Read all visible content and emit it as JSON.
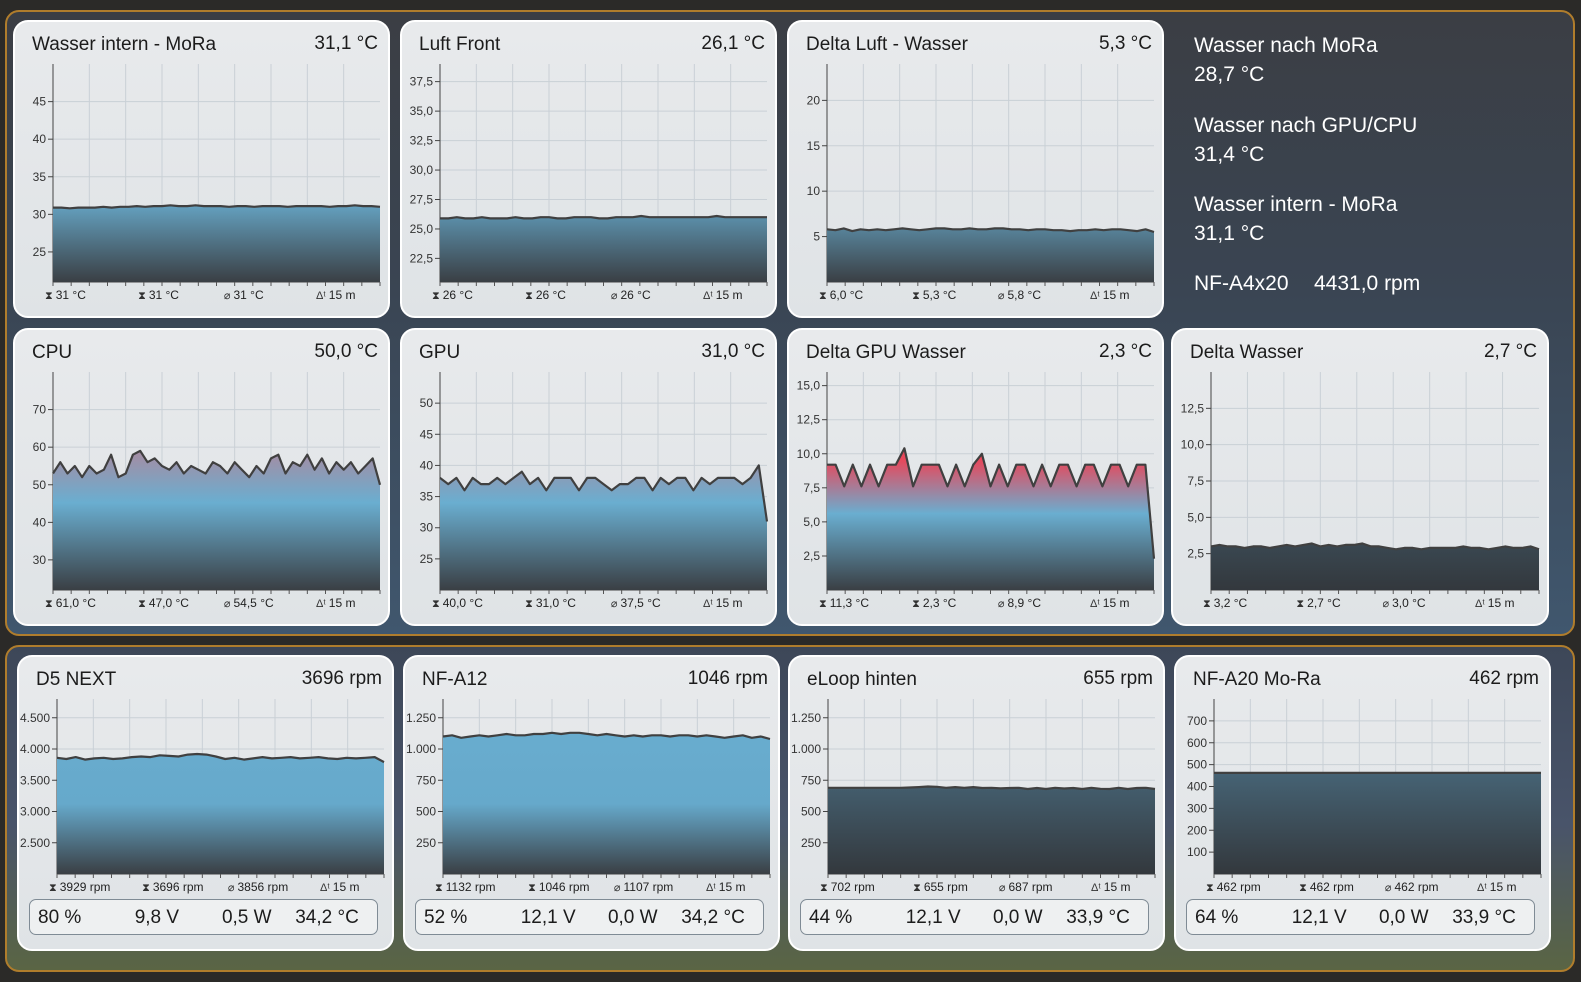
{
  "info_panel": {
    "items": [
      {
        "label": "Wasser nach MoRa",
        "value": "28,7 °C"
      },
      {
        "label": "Wasser nach GPU/CPU",
        "value": "31,4 °C"
      },
      {
        "label": "Wasser intern - MoRa",
        "value": "31,1 °C"
      }
    ],
    "fan_label": "NF-A4x20",
    "fan_value": "4431,0 rpm"
  },
  "panels": [
    {
      "id": "p0",
      "title": "Wasser intern - MoRa",
      "value": "31,1 °C",
      "stats": {
        "max": "31 °C",
        "min": "31 °C",
        "avg": "31 °C",
        "span": "15 m"
      },
      "chart_data": {
        "type": "area",
        "ymin": 21,
        "ymax": 50,
        "ticks": [
          {
            "v": 25,
            "l": "25"
          },
          {
            "v": 30,
            "l": "30"
          },
          {
            "v": 35,
            "l": "35"
          },
          {
            "v": 40,
            "l": "40"
          },
          {
            "v": 45,
            "l": "45"
          }
        ],
        "values": [
          30.9,
          30.9,
          30.8,
          30.9,
          30.9,
          30.9,
          31.0,
          30.9,
          31.0,
          31.0,
          31.1,
          31.0,
          31.1,
          31.1,
          31.2,
          31.1,
          31.1,
          31.2,
          31.1,
          31.1,
          31.1,
          31.0,
          31.1,
          31.1,
          31.0,
          31.1,
          31.1,
          31.1,
          31.0,
          31.1,
          31.1,
          31.1,
          31.1,
          31.0,
          31.1,
          31.1,
          31.2,
          31.1,
          31.1,
          31.0
        ],
        "fill": "temp"
      }
    },
    {
      "id": "p1",
      "title": "Luft Front",
      "value": "26,1 °C",
      "stats": {
        "max": "26 °C",
        "min": "26 °C",
        "avg": "26 °C",
        "span": "15 m"
      },
      "chart_data": {
        "type": "area",
        "ymin": 20.5,
        "ymax": 39,
        "ticks": [
          {
            "v": 22.5,
            "l": "22,5"
          },
          {
            "v": 25,
            "l": "25,0"
          },
          {
            "v": 27.5,
            "l": "27,5"
          },
          {
            "v": 30,
            "l": "30,0"
          },
          {
            "v": 32.5,
            "l": "32,5"
          },
          {
            "v": 35,
            "l": "35,0"
          },
          {
            "v": 37.5,
            "l": "37,5"
          }
        ],
        "values": [
          25.9,
          25.9,
          26.0,
          25.9,
          25.9,
          26.0,
          25.9,
          25.9,
          25.9,
          26.0,
          25.9,
          25.9,
          26.0,
          26.0,
          25.9,
          25.9,
          26.0,
          26.0,
          26.0,
          25.9,
          25.9,
          26.0,
          26.0,
          26.0,
          26.1,
          26.0,
          26.0,
          26.0,
          26.0,
          26.0,
          26.0,
          26.0,
          26.0,
          26.1,
          26.0,
          26.0,
          26.0,
          26.0,
          26.0,
          26.0
        ],
        "fill": "blue"
      }
    },
    {
      "id": "p2",
      "title": "Delta Luft - Wasser",
      "value": "5,3 °C",
      "stats": {
        "max": "6,0 °C",
        "min": "5,3 °C",
        "avg": "5,8 °C",
        "span": "15 m"
      },
      "chart_data": {
        "type": "area",
        "ymin": 0,
        "ymax": 24,
        "ticks": [
          {
            "v": 5,
            "l": "5"
          },
          {
            "v": 10,
            "l": "10"
          },
          {
            "v": 15,
            "l": "15"
          },
          {
            "v": 20,
            "l": "20"
          }
        ],
        "values": [
          5.8,
          5.7,
          5.9,
          5.6,
          5.8,
          5.7,
          5.8,
          5.7,
          5.8,
          5.9,
          5.8,
          5.7,
          5.8,
          5.9,
          5.9,
          5.8,
          5.8,
          5.9,
          5.8,
          5.8,
          5.9,
          5.9,
          5.8,
          5.8,
          5.7,
          5.8,
          5.8,
          5.7,
          5.7,
          5.6,
          5.7,
          5.7,
          5.8,
          5.7,
          5.8,
          5.8,
          5.7,
          5.6,
          5.8,
          5.5
        ],
        "fill": "temp"
      }
    },
    {
      "id": "p3",
      "title": "CPU",
      "value": "50,0 °C",
      "stats": {
        "max": "61,0 °C",
        "min": "47,0 °C",
        "avg": "54,5 °C",
        "span": "15 m"
      },
      "chart_data": {
        "type": "area",
        "ymin": 22,
        "ymax": 80,
        "ticks": [
          {
            "v": 30,
            "l": "30"
          },
          {
            "v": 40,
            "l": "40"
          },
          {
            "v": 50,
            "l": "50"
          },
          {
            "v": 60,
            "l": "60"
          },
          {
            "v": 70,
            "l": "70"
          }
        ],
        "values": [
          53,
          56,
          53,
          55,
          52,
          55,
          53,
          54,
          58,
          52,
          53,
          58,
          59,
          56,
          57,
          55,
          54,
          56,
          53,
          55,
          54,
          53,
          56,
          55,
          53,
          56,
          54,
          52,
          55,
          53,
          57,
          58,
          53,
          56,
          55,
          58,
          54,
          57,
          53,
          56,
          54,
          56,
          53,
          55,
          57,
          50
        ],
        "fill": "temp"
      }
    },
    {
      "id": "p4",
      "title": "GPU",
      "value": "31,0 °C",
      "stats": {
        "max": "40,0 °C",
        "min": "31,0 °C",
        "avg": "37,5 °C",
        "span": "15 m"
      },
      "chart_data": {
        "type": "area",
        "ymin": 20,
        "ymax": 55,
        "ticks": [
          {
            "v": 25,
            "l": "25"
          },
          {
            "v": 30,
            "l": "30"
          },
          {
            "v": 35,
            "l": "35"
          },
          {
            "v": 40,
            "l": "40"
          },
          {
            "v": 45,
            "l": "45"
          },
          {
            "v": 50,
            "l": "50"
          }
        ],
        "values": [
          38,
          37,
          38,
          36,
          38,
          37,
          37,
          38,
          37,
          38,
          39,
          37,
          38,
          36,
          38,
          38,
          38,
          36,
          38,
          38,
          37,
          36,
          37,
          37,
          38,
          38,
          36,
          38,
          37,
          38,
          38,
          36,
          38,
          37,
          38,
          38,
          38,
          37,
          38,
          40,
          31
        ],
        "fill": "temp"
      }
    },
    {
      "id": "p5",
      "title": "Delta GPU Wasser",
      "value": "2,3 °C",
      "stats": {
        "max": "11,3 °C",
        "min": "2,3 °C",
        "avg": "8,9 °C",
        "span": "15 m"
      },
      "chart_data": {
        "type": "area",
        "ymin": 0,
        "ymax": 16,
        "ticks": [
          {
            "v": 2.5,
            "l": "2,5"
          },
          {
            "v": 5,
            "l": "5,0"
          },
          {
            "v": 7.5,
            "l": "7,5"
          },
          {
            "v": 10,
            "l": "10,0"
          },
          {
            "v": 12.5,
            "l": "12,5"
          },
          {
            "v": 15,
            "l": "15,0"
          }
        ],
        "values": [
          9.2,
          9.2,
          7.6,
          9.2,
          7.6,
          9.2,
          7.6,
          9.2,
          9.2,
          10.4,
          7.6,
          9.2,
          9.2,
          9.2,
          7.6,
          9.2,
          7.6,
          9.2,
          10.0,
          7.6,
          9.2,
          7.6,
          9.2,
          9.2,
          7.6,
          9.2,
          7.6,
          9.2,
          9.2,
          7.6,
          9.2,
          9.2,
          7.6,
          9.2,
          9.2,
          7.6,
          9.2,
          9.2,
          2.3
        ],
        "fill": "hot"
      }
    },
    {
      "id": "p6",
      "title": "Delta Wasser",
      "value": "2,7 °C",
      "stats": {
        "max": "3,2 °C",
        "min": "2,7 °C",
        "avg": "3,0 °C",
        "span": "15 m"
      },
      "chart_data": {
        "type": "area",
        "ymin": 0,
        "ymax": 15,
        "ticks": [
          {
            "v": 2.5,
            "l": "2,5"
          },
          {
            "v": 5,
            "l": "5,0"
          },
          {
            "v": 7.5,
            "l": "7,5"
          },
          {
            "v": 10,
            "l": "10,0"
          },
          {
            "v": 12.5,
            "l": "12,5"
          }
        ],
        "values": [
          3.0,
          3.1,
          3.0,
          3.0,
          2.9,
          3.0,
          3.0,
          2.9,
          3.0,
          3.1,
          3.0,
          3.1,
          3.2,
          3.0,
          3.1,
          3.0,
          3.1,
          3.1,
          3.2,
          3.0,
          3.0,
          2.9,
          2.8,
          2.9,
          2.9,
          2.8,
          2.9,
          2.9,
          2.9,
          2.9,
          3.0,
          2.9,
          2.9,
          2.8,
          2.9,
          3.0,
          2.9,
          2.9,
          3.0,
          2.8
        ],
        "fill": "dark"
      }
    },
    {
      "id": "p7",
      "title": "D5 NEXT",
      "value": "3696 rpm",
      "stats": {
        "max": "3929 rpm",
        "min": "3696 rpm",
        "avg": "3856 rpm",
        "span": "15 m"
      },
      "chart_data": {
        "type": "area",
        "ymin": 2000,
        "ymax": 4800,
        "ticks": [
          {
            "v": 2500,
            "l": "2.500"
          },
          {
            "v": 3000,
            "l": "3.000"
          },
          {
            "v": 3500,
            "l": "3.500"
          },
          {
            "v": 4000,
            "l": "4.000"
          },
          {
            "v": 4500,
            "l": "4.500"
          }
        ],
        "values": [
          3860,
          3840,
          3870,
          3830,
          3850,
          3860,
          3840,
          3850,
          3870,
          3880,
          3870,
          3900,
          3890,
          3880,
          3910,
          3920,
          3910,
          3880,
          3840,
          3860,
          3830,
          3850,
          3870,
          3850,
          3860,
          3870,
          3850,
          3860,
          3870,
          3850,
          3840,
          3860,
          3850,
          3860,
          3870,
          3790
        ],
        "fill": "blue"
      }
    },
    {
      "id": "p8",
      "title": "NF-A12",
      "value": "1046 rpm",
      "stats": {
        "max": "1132 rpm",
        "min": "1046 rpm",
        "avg": "1107 rpm",
        "span": "15 m"
      },
      "chart_data": {
        "type": "area",
        "ymin": 0,
        "ymax": 1400,
        "ticks": [
          {
            "v": 250,
            "l": "250"
          },
          {
            "v": 500,
            "l": "500"
          },
          {
            "v": 750,
            "l": "750"
          },
          {
            "v": 1000,
            "l": "1.000"
          },
          {
            "v": 1250,
            "l": "1.250"
          }
        ],
        "values": [
          1100,
          1110,
          1090,
          1100,
          1110,
          1100,
          1110,
          1120,
          1110,
          1110,
          1120,
          1120,
          1130,
          1120,
          1130,
          1130,
          1120,
          1110,
          1120,
          1110,
          1100,
          1110,
          1100,
          1110,
          1110,
          1100,
          1110,
          1110,
          1100,
          1110,
          1100,
          1090,
          1100,
          1110,
          1090,
          1100,
          1080
        ],
        "fill": "blue"
      }
    },
    {
      "id": "p9",
      "title": "eLoop hinten",
      "value": "655 rpm",
      "stats": {
        "max": "702 rpm",
        "min": "655 rpm",
        "avg": "687 rpm",
        "span": "15 m"
      },
      "chart_data": {
        "type": "area",
        "ymin": 0,
        "ymax": 1400,
        "ticks": [
          {
            "v": 250,
            "l": "250"
          },
          {
            "v": 500,
            "l": "500"
          },
          {
            "v": 750,
            "l": "750"
          },
          {
            "v": 1000,
            "l": "1.000"
          },
          {
            "v": 1250,
            "l": "1.250"
          }
        ],
        "values": [
          690,
          690,
          690,
          690,
          690,
          690,
          690,
          690,
          690,
          692,
          695,
          700,
          698,
          690,
          695,
          690,
          695,
          688,
          690,
          685,
          688,
          690,
          680,
          688,
          680,
          690,
          684,
          688,
          680,
          690,
          682,
          680,
          690,
          680,
          688,
          690,
          680
        ],
        "fill": "dark"
      }
    },
    {
      "id": "p10",
      "title": "NF-A20 Mo-Ra",
      "value": "462 rpm",
      "stats": {
        "max": "462 rpm",
        "min": "462 rpm",
        "avg": "462 rpm",
        "span": "15 m"
      },
      "chart_data": {
        "type": "area",
        "ymin": 0,
        "ymax": 800,
        "ticks": [
          {
            "v": 100,
            "l": "100"
          },
          {
            "v": 200,
            "l": "200"
          },
          {
            "v": 300,
            "l": "300"
          },
          {
            "v": 400,
            "l": "400"
          },
          {
            "v": 500,
            "l": "500"
          },
          {
            "v": 600,
            "l": "600"
          },
          {
            "v": 700,
            "l": "700"
          }
        ],
        "values": [
          462,
          462,
          462,
          462,
          462,
          462,
          462,
          462,
          462,
          462,
          462,
          462,
          462,
          462,
          462,
          462,
          462,
          462,
          462,
          462,
          462,
          462,
          462,
          462,
          462,
          462,
          462,
          462,
          462,
          462
        ],
        "fill": "dark"
      }
    }
  ],
  "infobars": {
    "p7": {
      "pct": "80 %",
      "volt": "9,8 V",
      "watt": "0,5 W",
      "temp": "34,2 °C"
    },
    "p8": {
      "pct": "52 %",
      "volt": "12,1 V",
      "watt": "0,0 W",
      "temp": "34,2 °C"
    },
    "p9": {
      "pct": "44 %",
      "volt": "12,1 V",
      "watt": "0,0 W",
      "temp": "33,9 °C"
    },
    "p10": {
      "pct": "64 %",
      "volt": "12,1 V",
      "watt": "0,0 W",
      "temp": "33,9 °C"
    }
  },
  "colors": {
    "border_accent": "#b07d2c",
    "line": "#404040",
    "grid": "#c9d0d6",
    "fill_blue": "#6aaed0",
    "fill_red": "#cc5566",
    "fill_hot": "#f03b3b",
    "fill_dark": "#3b4045"
  }
}
